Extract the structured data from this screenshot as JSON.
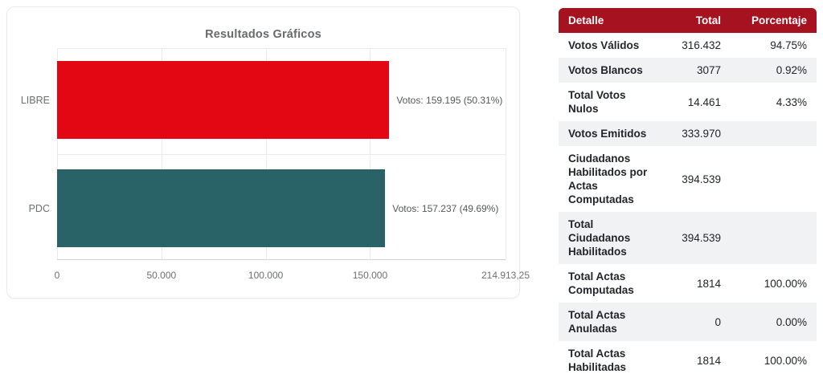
{
  "colors": {
    "table_header_bg": "#A6121F",
    "table_header_text": "#ffffff",
    "row_stripe": "#f1f2f4",
    "bar_libre": "#E20713",
    "bar_pdc": "#2A6367",
    "grid": "#ebebeb",
    "axis_text": "#6d6f71"
  },
  "chart_data": [
    {
      "type": "bar",
      "orientation": "horizontal",
      "title": "Resultados Gráficos",
      "categories": [
        "LIBRE",
        "PDC"
      ],
      "values": [
        159195,
        157237
      ],
      "percentages": [
        50.31,
        49.69
      ],
      "data_labels": [
        "Votos: 159.195 (50.31%)",
        "Votos: 157.237 (49.69%)"
      ],
      "bar_colors": [
        "#E20713",
        "#2A6367"
      ],
      "xlim": [
        0,
        214913.25
      ],
      "x_tick_values": [
        0,
        50000,
        100000,
        150000,
        214913.25
      ],
      "x_tick_labels": [
        "0",
        "50.000",
        "100.000",
        "150.000",
        "214.913,25"
      ],
      "grid": true,
      "legend": false
    },
    {
      "type": "table",
      "columns": [
        "Detalle",
        "Total",
        "Porcentaje"
      ],
      "rows": [
        [
          "Votos Válidos",
          "316.432",
          "94.75%"
        ],
        [
          "Votos Blancos",
          "3077",
          "0.92%"
        ],
        [
          "Total Votos Nulos",
          "14.461",
          "4.33%"
        ],
        [
          "Votos Emitidos",
          "333.970",
          ""
        ],
        [
          "Ciudadanos Habilitados por Actas Computadas",
          "394.539",
          ""
        ],
        [
          "Total Ciudadanos Habilitados",
          "394.539",
          ""
        ],
        [
          "Total Actas Computadas",
          "1814",
          "100.00%"
        ],
        [
          "Total Actas Anuladas",
          "0",
          "0.00%"
        ],
        [
          "Total Actas Habilitadas",
          "1814",
          "100.00%"
        ]
      ]
    }
  ]
}
